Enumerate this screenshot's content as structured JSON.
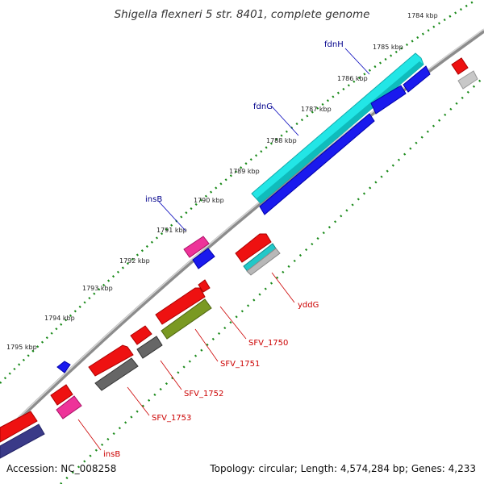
{
  "title": "Shigella flexneri 5 str. 8401, complete genome",
  "footer": {
    "accession": "Accession: NC_008258",
    "summary": "Topology: circular; Length: 4,574,284 bp; Genes: 4,233"
  },
  "ticks": [
    "1784 kbp",
    "1785 kbp",
    "1786 kbp",
    "1787 kbp",
    "1788 kbp",
    "1789 kbp",
    "1790 kbp",
    "1791 kbp",
    "1792 kbp",
    "1793 kbp",
    "1794 kbp",
    "1795 kbp"
  ],
  "colors": {
    "backbone": "#888888",
    "tick": "#1a8a1a",
    "forward_label": "#00008b",
    "reverse_label": "#cc0000"
  },
  "forward_labels": [
    "fdnH",
    "fdnG",
    "insB"
  ],
  "reverse_labels": [
    "yddG",
    "SFV_1750",
    "SFV_1751",
    "SFV_1752",
    "SFV_1753",
    "insB"
  ]
}
